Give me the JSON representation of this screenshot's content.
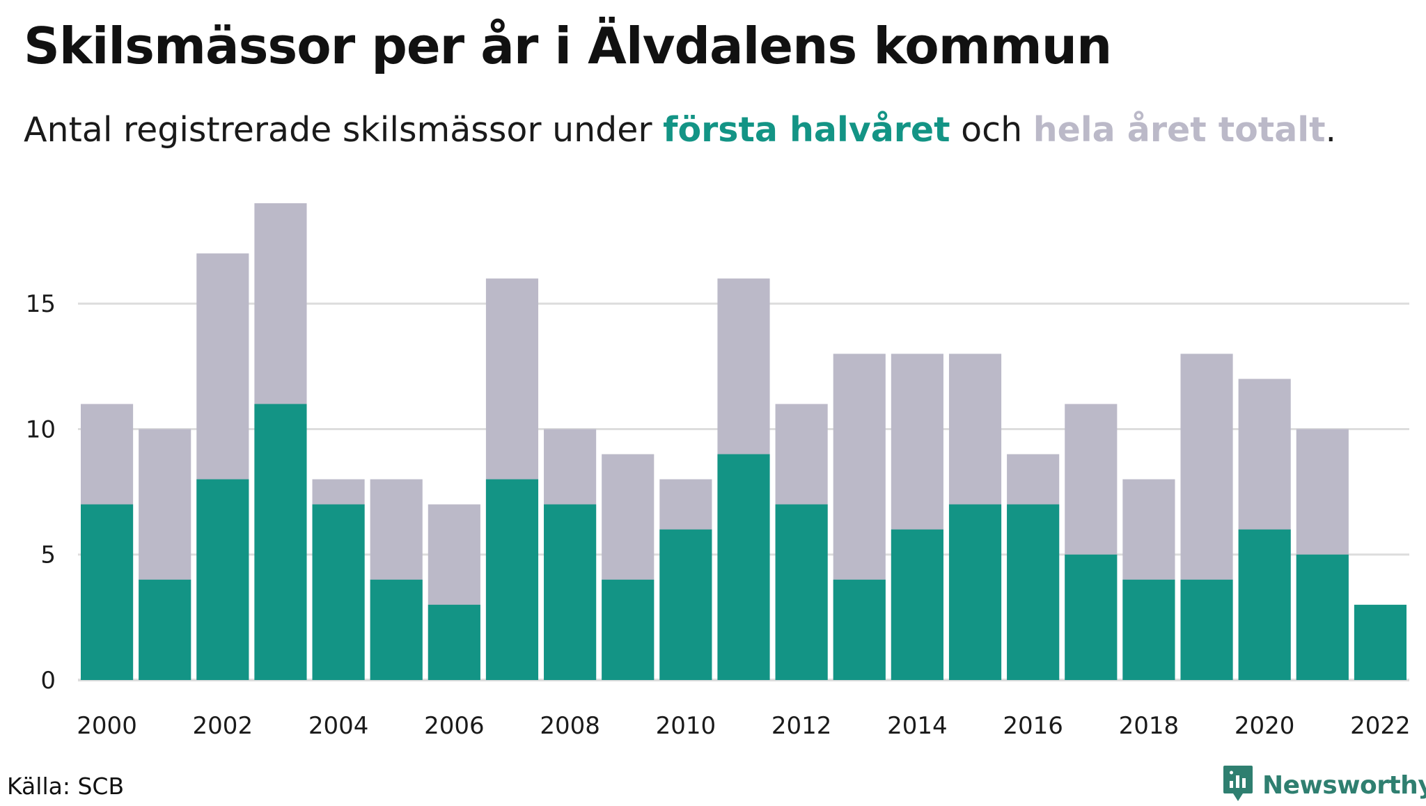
{
  "header": {
    "title": "Skilsmässor per år i Älvdalens kommun",
    "subtitle_before": "Antal registrerade skilsmässor under ",
    "subtitle_highlight_1": "första halvåret",
    "subtitle_between": " och ",
    "subtitle_highlight_2": "hela året totalt",
    "subtitle_after": "."
  },
  "footer": {
    "source": "Källa: SCB",
    "brand": "Newsworthy"
  },
  "colors": {
    "first_half": "#139485",
    "full_year": "#bbb9c8",
    "grid": "#dddddd",
    "brand": "#2f7f70"
  },
  "icons": {
    "brand_logo": "bar-chart-speech-bubble-icon"
  },
  "chart_data": {
    "type": "bar",
    "stacking": "overlay",
    "categories": [
      "2000",
      "2001",
      "2002",
      "2003",
      "2004",
      "2005",
      "2006",
      "2007",
      "2008",
      "2009",
      "2010",
      "2011",
      "2012",
      "2013",
      "2014",
      "2015",
      "2016",
      "2017",
      "2018",
      "2019",
      "2020",
      "2021",
      "2022"
    ],
    "x_tick_labels": [
      "2000",
      "2002",
      "2004",
      "2006",
      "2008",
      "2010",
      "2012",
      "2014",
      "2016",
      "2018",
      "2020",
      "2022"
    ],
    "series": [
      {
        "name": "hela året totalt",
        "color": "#bbb9c8",
        "values": [
          11,
          10,
          17,
          19,
          8,
          8,
          7,
          16,
          10,
          9,
          8,
          16,
          11,
          13,
          13,
          13,
          9,
          11,
          8,
          13,
          12,
          10,
          null
        ]
      },
      {
        "name": "första halvåret",
        "color": "#139485",
        "values": [
          7,
          4,
          8,
          11,
          7,
          4,
          3,
          8,
          7,
          4,
          6,
          9,
          7,
          4,
          6,
          7,
          7,
          5,
          4,
          4,
          6,
          5,
          3
        ]
      }
    ],
    "y_ticks": [
      0,
      5,
      10,
      15
    ],
    "ylim": [
      0,
      19
    ],
    "grid": true,
    "title": "Skilsmässor per år i Älvdalens kommun",
    "xlabel": "",
    "ylabel": ""
  }
}
